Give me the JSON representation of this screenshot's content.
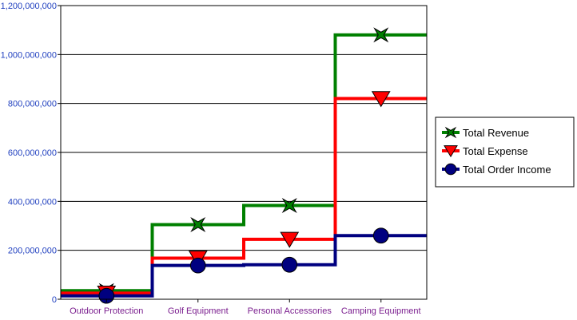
{
  "chart_data": {
    "type": "line",
    "line_style": "step",
    "categories": [
      "Outdoor Protection",
      "Golf Equipment",
      "Personal Accessories",
      "Camping Equipment"
    ],
    "series": [
      {
        "name": "Total Revenue",
        "color": "#008000",
        "marker": "star",
        "values": [
          35000000,
          305000000,
          383000000,
          1080000000
        ]
      },
      {
        "name": "Total Expense",
        "color": "#ff0000",
        "marker": "triangle-down",
        "values": [
          25000000,
          168000000,
          245000000,
          820000000
        ]
      },
      {
        "name": "Total Order Income",
        "color": "#000080",
        "marker": "circle",
        "values": [
          14000000,
          138000000,
          141000000,
          260000000
        ]
      }
    ],
    "ylim": [
      0,
      1200000000
    ],
    "yticks": [
      0,
      200000000,
      400000000,
      600000000,
      800000000,
      1000000000,
      1200000000
    ],
    "ytick_labels": [
      "0",
      "200,000,000",
      "400,000,000",
      "600,000,000",
      "800,000,000",
      "1,000,000,000",
      "1,200,000,000"
    ],
    "grid": true,
    "legend_position": "right"
  }
}
